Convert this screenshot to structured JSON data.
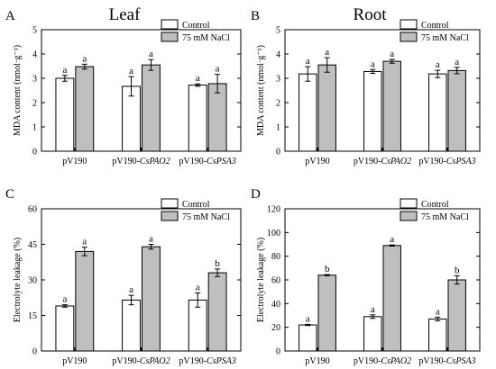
{
  "colors": {
    "control": "#ffffff",
    "nacl": "#bfbfbf",
    "stroke": "#000000"
  },
  "chart_data": [
    {
      "type": "bar",
      "panel_letter": "A",
      "title": "Leaf",
      "ylabel": "MDA content (nmol·g⁻¹)",
      "ylim": [
        0,
        5
      ],
      "yticks": [
        "0",
        "1",
        "2",
        "3",
        "4",
        "5"
      ],
      "categories": [
        "pV190",
        "pV190-CsPAO2",
        "pV190-CsPSA3"
      ],
      "category_labels": [
        {
          "plain": "pV190",
          "ital": ""
        },
        {
          "plain": "pV190-",
          "ital": "CsPAO2"
        },
        {
          "plain": "pV190-",
          "ital": "CsPSA3"
        }
      ],
      "legend": [
        "Control",
        "75 mM NaCl"
      ],
      "legend_position": "top-right",
      "series": [
        {
          "name": "Control",
          "values": [
            3.0,
            2.67,
            2.72
          ],
          "errors": [
            0.12,
            0.4,
            0.05
          ],
          "letters": [
            "a",
            "a",
            "a"
          ]
        },
        {
          "name": "75 mM NaCl",
          "values": [
            3.48,
            3.55,
            2.78
          ],
          "errors": [
            0.1,
            0.22,
            0.38
          ],
          "letters": [
            "a",
            "a",
            "a"
          ]
        }
      ]
    },
    {
      "type": "bar",
      "panel_letter": "B",
      "title": "Root",
      "ylabel": "MDA content (nmol·g⁻¹)",
      "ylim": [
        0,
        5
      ],
      "yticks": [
        "0",
        "1",
        "2",
        "3",
        "4",
        "5"
      ],
      "categories": [
        "pV190",
        "pV190-CsPAO2",
        "pV190-CsPSA3"
      ],
      "category_labels": [
        {
          "plain": "pV190",
          "ital": ""
        },
        {
          "plain": "pV190-",
          "ital": "CsPAO2"
        },
        {
          "plain": "pV190-",
          "ital": "CsPSA3"
        }
      ],
      "legend": [
        "Control",
        "75 mM NaCl"
      ],
      "legend_position": "top-right",
      "series": [
        {
          "name": "Control",
          "values": [
            3.18,
            3.28,
            3.18
          ],
          "errors": [
            0.3,
            0.08,
            0.15
          ],
          "letters": [
            "a",
            "a",
            "a"
          ]
        },
        {
          "name": "75 mM NaCl",
          "values": [
            3.55,
            3.7,
            3.32
          ],
          "errors": [
            0.3,
            0.08,
            0.13
          ],
          "letters": [
            "a",
            "a",
            "a"
          ]
        }
      ]
    },
    {
      "type": "bar",
      "panel_letter": "C",
      "title": "",
      "ylabel": "Electrolyte leakage (%)",
      "ylim": [
        0,
        60
      ],
      "yticks": [
        "0",
        "15",
        "30",
        "45",
        "60"
      ],
      "categories": [
        "pV190",
        "pV190-CsPAO2",
        "pV190-CsPSA3"
      ],
      "category_labels": [
        {
          "plain": "pV190",
          "ital": ""
        },
        {
          "plain": "pV190-",
          "ital": "CsPAO2"
        },
        {
          "plain": "pV190-",
          "ital": "CsPSA3"
        }
      ],
      "legend": [
        "Control",
        "75 mM NaCl"
      ],
      "legend_position": "top-right",
      "series": [
        {
          "name": "Control",
          "values": [
            19,
            21.5,
            21.5
          ],
          "errors": [
            0.5,
            2.0,
            3.0
          ],
          "letters": [
            "a",
            "a",
            "a"
          ]
        },
        {
          "name": "75 mM NaCl",
          "values": [
            42,
            44,
            33
          ],
          "errors": [
            1.8,
            1.0,
            1.6
          ],
          "letters": [
            "a",
            "a",
            "b"
          ]
        }
      ]
    },
    {
      "type": "bar",
      "panel_letter": "D",
      "title": "",
      "ylabel": "Electrolyte leakage (%)",
      "ylim": [
        0,
        120
      ],
      "yticks": [
        "0",
        "20",
        "40",
        "60",
        "80",
        "100",
        "120"
      ],
      "categories": [
        "pV190",
        "pV190-CsPAO2",
        "pV190-CsPSA3"
      ],
      "category_labels": [
        {
          "plain": "pV190",
          "ital": ""
        },
        {
          "plain": "pV190-",
          "ital": "CsPAO2"
        },
        {
          "plain": "pV190-",
          "ital": "CsPSA3"
        }
      ],
      "legend": [
        "Control",
        "75 mM NaCl"
      ],
      "legend_position": "top-right",
      "series": [
        {
          "name": "Control",
          "values": [
            22,
            29,
            27
          ],
          "errors": [
            0.5,
            1.5,
            1.5
          ],
          "letters": [
            "a",
            "a",
            "a"
          ]
        },
        {
          "name": "75 mM NaCl",
          "values": [
            64,
            89,
            60
          ],
          "errors": [
            0.5,
            0.5,
            3.5
          ],
          "letters": [
            "b",
            "a",
            "b"
          ]
        }
      ]
    }
  ]
}
